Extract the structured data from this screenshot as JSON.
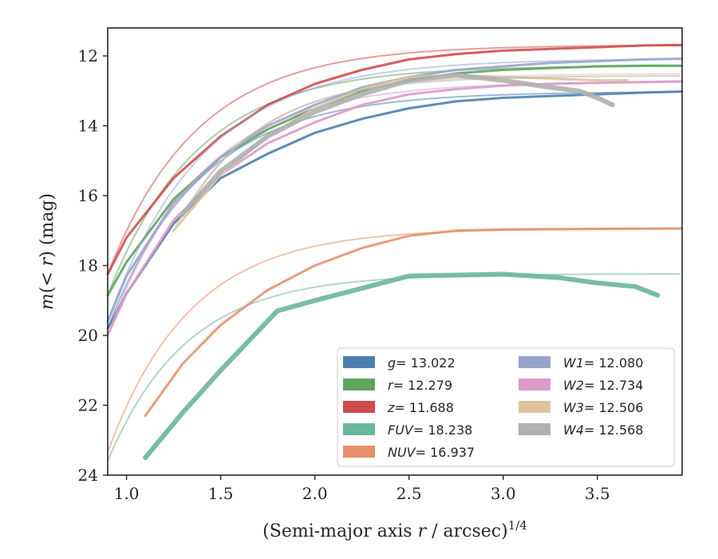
{
  "chart_data": {
    "type": "line",
    "xlabel_main": "(Semi-major axis ",
    "xlabel_var": "r",
    "xlabel_unit": " / arcsec)",
    "xlabel_exp": "1/4",
    "ylabel_main": "m",
    "ylabel_inner": "(< ",
    "ylabel_var": "r",
    "ylabel_close": ")",
    "ylabel_unit": " (mag)",
    "xlim": [
      0.9,
      3.95
    ],
    "ylim": [
      24,
      11.2
    ],
    "y_inverted": true,
    "xticks": [
      1.0,
      1.5,
      2.0,
      2.5,
      3.0,
      3.5
    ],
    "xtick_labels": [
      "1.0",
      "1.5",
      "2.0",
      "2.5",
      "3.0",
      "3.5"
    ],
    "yticks": [
      12,
      14,
      16,
      18,
      20,
      22,
      24
    ],
    "ytick_labels": [
      "12",
      "14",
      "16",
      "18",
      "20",
      "22",
      "24"
    ],
    "grid": false,
    "legend_position": "lower-right",
    "series": [
      {
        "name": "g",
        "label_value": "= 13.022",
        "color": "#4c7fad",
        "m_tot": 13.022,
        "m0": 19.8,
        "x0": 0.9,
        "k": 2.05,
        "x_end": 3.95,
        "data": {
          "x": [
            0.9,
            1.0,
            1.25,
            1.5,
            1.75,
            2.0,
            2.25,
            2.5,
            2.75,
            3.0,
            3.25,
            3.5,
            3.75,
            3.95
          ],
          "y": [
            19.8,
            18.8,
            16.8,
            15.5,
            14.8,
            14.2,
            13.8,
            13.5,
            13.3,
            13.2,
            13.15,
            13.1,
            13.05,
            13.02
          ]
        }
      },
      {
        "name": "r",
        "label_value": "= 12.279",
        "color": "#5ea55e",
        "m_tot": 12.279,
        "m0": 18.85,
        "x0": 0.9,
        "k": 2.1,
        "x_end": 3.95,
        "data": {
          "x": [
            0.9,
            1.0,
            1.25,
            1.5,
            1.75,
            2.0,
            2.25,
            2.5,
            2.75,
            3.0,
            3.25,
            3.5,
            3.75,
            3.95
          ],
          "y": [
            18.85,
            17.9,
            16.1,
            14.9,
            14.1,
            13.5,
            13.0,
            12.7,
            12.5,
            12.4,
            12.35,
            12.3,
            12.28,
            12.28
          ]
        }
      },
      {
        "name": "z",
        "label_value": "= 11.688",
        "color": "#d14c4c",
        "m_tot": 11.688,
        "m0": 18.25,
        "x0": 0.9,
        "k": 2.1,
        "x_end": 3.95,
        "data": {
          "x": [
            0.9,
            1.0,
            1.25,
            1.5,
            1.75,
            2.0,
            2.25,
            2.5,
            2.75,
            3.0,
            3.25,
            3.5,
            3.75,
            3.95
          ],
          "y": [
            18.25,
            17.2,
            15.5,
            14.3,
            13.4,
            12.8,
            12.4,
            12.1,
            11.95,
            11.85,
            11.8,
            11.75,
            11.7,
            11.69
          ]
        }
      },
      {
        "name": "FUV",
        "label_value": "= 18.238",
        "color": "#6ab69a",
        "m_tot": 18.238,
        "m0": 23.6,
        "x0": 0.9,
        "k": 2.4,
        "x_end": 3.95,
        "data": {
          "x": [
            1.1,
            1.3,
            1.5,
            1.8,
            2.0,
            2.5,
            3.0,
            3.3,
            3.5,
            3.7,
            3.82
          ],
          "y": [
            23.5,
            22.2,
            21.0,
            19.3,
            19.0,
            18.3,
            18.25,
            18.35,
            18.5,
            18.6,
            18.85
          ]
        }
      },
      {
        "name": "NUV",
        "label_value": "= 16.937",
        "color": "#e8906a",
        "m_tot": 16.937,
        "m0": 23.35,
        "x0": 0.9,
        "k": 2.3,
        "x_end": 3.95,
        "data": {
          "x": [
            1.1,
            1.3,
            1.5,
            1.75,
            2.0,
            2.25,
            2.5,
            2.75,
            3.0,
            3.5,
            3.95
          ],
          "y": [
            22.3,
            20.8,
            19.7,
            18.7,
            18.0,
            17.5,
            17.15,
            17.0,
            16.97,
            16.95,
            16.94
          ]
        }
      },
      {
        "name": "W1",
        "label_value": "= 12.080",
        "color": "#96a5cc",
        "m_tot": 12.08,
        "m0": 19.6,
        "x0": 0.9,
        "k": 2.0,
        "x_end": 3.95,
        "data": {
          "x": [
            0.9,
            1.0,
            1.25,
            1.5,
            1.75,
            2.0,
            2.25,
            2.5,
            2.75,
            3.0,
            3.25,
            3.5,
            3.75,
            3.95
          ],
          "y": [
            19.6,
            18.3,
            16.2,
            14.9,
            14.0,
            13.4,
            12.9,
            12.6,
            12.4,
            12.3,
            12.2,
            12.15,
            12.1,
            12.08
          ]
        }
      },
      {
        "name": "W2",
        "label_value": "= 12.734",
        "color": "#dd9ac9",
        "m_tot": 12.734,
        "m0": 20.0,
        "x0": 0.9,
        "k": 2.05,
        "x_end": 3.95,
        "data": {
          "x": [
            0.9,
            1.0,
            1.25,
            1.5,
            1.75,
            2.0,
            2.25,
            2.5,
            2.75,
            3.0,
            3.25,
            3.5,
            3.75,
            3.95
          ],
          "y": [
            20.0,
            18.8,
            16.7,
            15.4,
            14.5,
            13.9,
            13.4,
            13.1,
            12.95,
            12.85,
            12.8,
            12.77,
            12.75,
            12.73
          ]
        }
      },
      {
        "name": "W3",
        "label_value": "= 12.506",
        "color": "#dec39e",
        "m_tot": 12.506,
        "m0": 17.0,
        "x0": 1.25,
        "k": 2.3,
        "x_end": 3.66,
        "data": {
          "x": [
            1.25,
            1.5,
            1.75,
            2.0,
            2.25,
            2.5,
            2.75,
            3.0,
            3.25,
            3.5,
            3.66
          ],
          "y": [
            17.0,
            15.4,
            14.3,
            13.5,
            12.95,
            12.6,
            12.55,
            12.6,
            12.65,
            12.7,
            12.7
          ]
        }
      },
      {
        "name": "W4",
        "label_value": "= 12.568",
        "color": "#b0b0b0",
        "m_tot": 12.568,
        "m0": 16.6,
        "x0": 1.3,
        "k": 2.4,
        "x_end": 3.58,
        "data": {
          "x": [
            1.3,
            1.5,
            1.75,
            2.0,
            2.25,
            2.5,
            2.75,
            3.0,
            3.25,
            3.4,
            3.5,
            3.58
          ],
          "y": [
            16.5,
            15.3,
            14.3,
            13.6,
            13.1,
            12.7,
            12.55,
            12.7,
            12.9,
            13.0,
            13.2,
            13.4
          ]
        }
      }
    ]
  }
}
